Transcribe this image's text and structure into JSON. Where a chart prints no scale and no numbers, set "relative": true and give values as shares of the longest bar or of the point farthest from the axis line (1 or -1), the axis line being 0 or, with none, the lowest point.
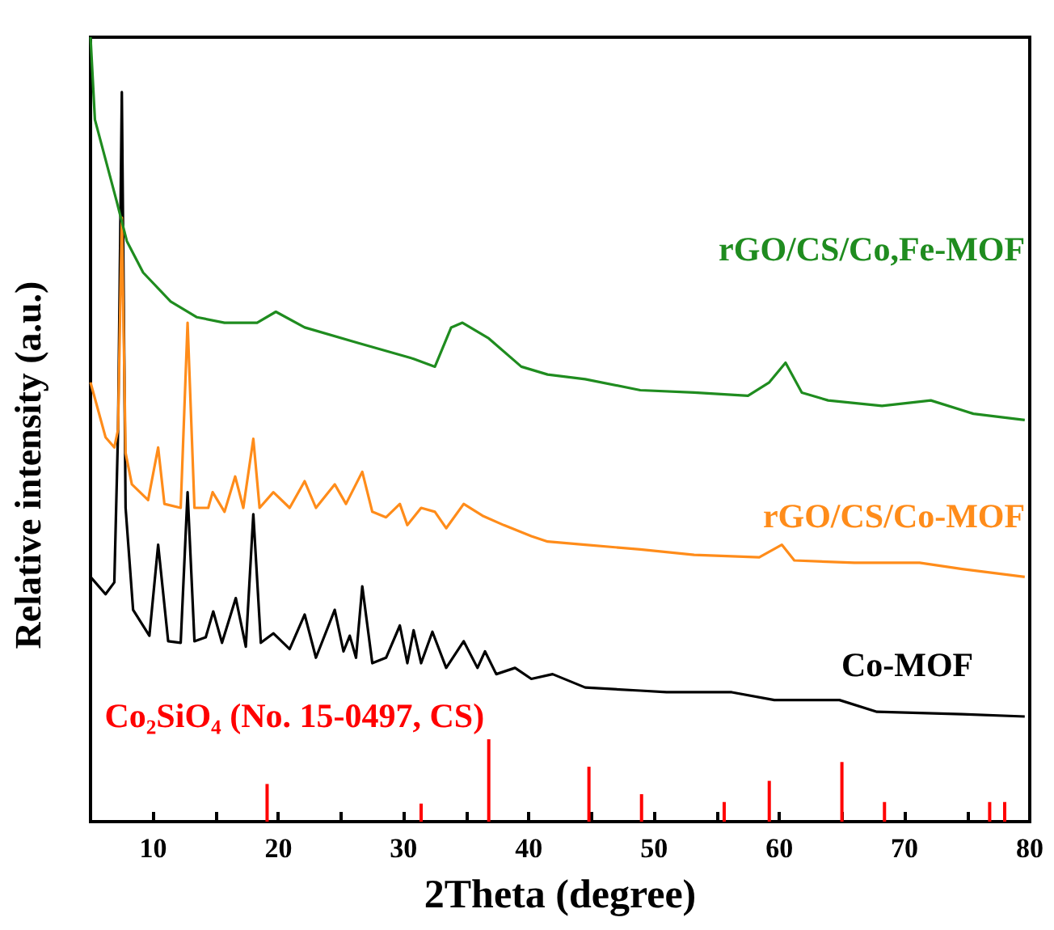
{
  "chart_data": {
    "type": "line",
    "xlabel": "2Theta (degree)",
    "ylabel": "Relative intensity (a.u.)",
    "relative": true,
    "xlim": [
      5,
      80
    ],
    "xticks": [
      10,
      {
        "value": 15,
        "label": null
      },
      20,
      {
        "value": 25,
        "label": null
      },
      30,
      {
        "value": 35,
        "label": null
      },
      40,
      {
        "value": 45,
        "label": null
      },
      50,
      {
        "value": 55,
        "label": null
      },
      60,
      {
        "value": 65,
        "label": null
      },
      70,
      {
        "value": 75,
        "label": null
      },
      80
    ],
    "grid": false,
    "legend": false,
    "marker": "none",
    "line_style": "solid",
    "series": [
      {
        "name": "rGO/CS/Co,Fe-MOF",
        "color": "#1f8c1f",
        "x": [
          5,
          5.35,
          7.1,
          7.9,
          9.2,
          11.4,
          13.5,
          15.7,
          18.3,
          19.8,
          22.1,
          26.4,
          30.8,
          32.5,
          33.8,
          34.7,
          36.8,
          39.4,
          41.5,
          44.5,
          48.9,
          53.2,
          57.5,
          59.2,
          60.5,
          61.8,
          63.9,
          68.2,
          72.1,
          75.5,
          79.6
        ],
        "values": [
          1.0,
          0.895,
          0.79,
          0.74,
          0.7,
          0.663,
          0.643,
          0.636,
          0.636,
          0.65,
          0.63,
          0.61,
          0.59,
          0.58,
          0.63,
          0.636,
          0.616,
          0.58,
          0.57,
          0.564,
          0.55,
          0.547,
          0.543,
          0.56,
          0.585,
          0.547,
          0.537,
          0.53,
          0.537,
          0.52,
          0.512
        ]
      },
      {
        "name": "rGO/CS/Co-MOF",
        "color": "#ff8c1a",
        "x": [
          5,
          6.2,
          6.9,
          7.2,
          7.5,
          7.8,
          8.3,
          9.6,
          10.4,
          10.9,
          12.2,
          12.75,
          13.3,
          14.4,
          14.75,
          15.7,
          16.55,
          17.2,
          18.0,
          18.5,
          19.6,
          20.9,
          22.1,
          23.0,
          24.5,
          25.4,
          26.7,
          27.5,
          28.6,
          29.7,
          30.3,
          31.4,
          32.5,
          33.4,
          34.8,
          36.3,
          38.0,
          40.2,
          41.5,
          44.5,
          48.9,
          53.2,
          58.4,
          60.2,
          61.2,
          66.0,
          71.2,
          74.6,
          79.6
        ],
        "values": [
          0.56,
          0.49,
          0.477,
          0.5,
          0.77,
          0.47,
          0.43,
          0.41,
          0.477,
          0.405,
          0.4,
          0.636,
          0.4,
          0.4,
          0.42,
          0.395,
          0.44,
          0.4,
          0.488,
          0.4,
          0.42,
          0.4,
          0.434,
          0.4,
          0.43,
          0.405,
          0.446,
          0.395,
          0.388,
          0.405,
          0.378,
          0.4,
          0.395,
          0.374,
          0.405,
          0.39,
          0.378,
          0.364,
          0.357,
          0.353,
          0.347,
          0.34,
          0.337,
          0.353,
          0.333,
          0.33,
          0.33,
          0.322,
          0.312
        ]
      },
      {
        "name": "Co-MOF",
        "color": "#000000",
        "x": [
          5,
          6.2,
          6.9,
          7.2,
          7.5,
          7.8,
          8.4,
          9.7,
          10.4,
          11.2,
          12.2,
          12.75,
          13.3,
          14.2,
          14.8,
          15.5,
          16.6,
          17.4,
          18.0,
          18.6,
          19.6,
          20.9,
          22.1,
          23.0,
          24.5,
          25.2,
          25.7,
          26.2,
          26.7,
          27.5,
          28.6,
          29.7,
          30.3,
          30.8,
          31.4,
          32.3,
          33.4,
          34.8,
          35.9,
          36.5,
          37.4,
          38.9,
          40.2,
          41.9,
          44.5,
          48.9,
          51.0,
          56.2,
          59.6,
          64.8,
          67.8,
          74.6,
          79.6
        ],
        "values": [
          0.312,
          0.29,
          0.305,
          0.5,
          0.93,
          0.4,
          0.27,
          0.237,
          0.353,
          0.23,
          0.228,
          0.42,
          0.23,
          0.235,
          0.268,
          0.228,
          0.285,
          0.223,
          0.392,
          0.228,
          0.24,
          0.22,
          0.264,
          0.209,
          0.27,
          0.217,
          0.237,
          0.209,
          0.3,
          0.202,
          0.209,
          0.25,
          0.202,
          0.244,
          0.202,
          0.242,
          0.196,
          0.23,
          0.196,
          0.217,
          0.188,
          0.196,
          0.182,
          0.188,
          0.171,
          0.167,
          0.165,
          0.165,
          0.155,
          0.155,
          0.14,
          0.137,
          0.134
        ]
      },
      {
        "name": "Co₂SiO₄ (No. 15-0497, CS)",
        "color": "#ff0000",
        "type": "bar",
        "x": [
          19.1,
          31.4,
          36.8,
          44.8,
          49.0,
          55.6,
          59.2,
          65.0,
          68.4,
          76.8,
          78.0
        ],
        "values": [
          0.048,
          0.023,
          0.105,
          0.07,
          0.035,
          0.025,
          0.052,
          0.076,
          0.025,
          0.025,
          0.025
        ]
      }
    ]
  }
}
